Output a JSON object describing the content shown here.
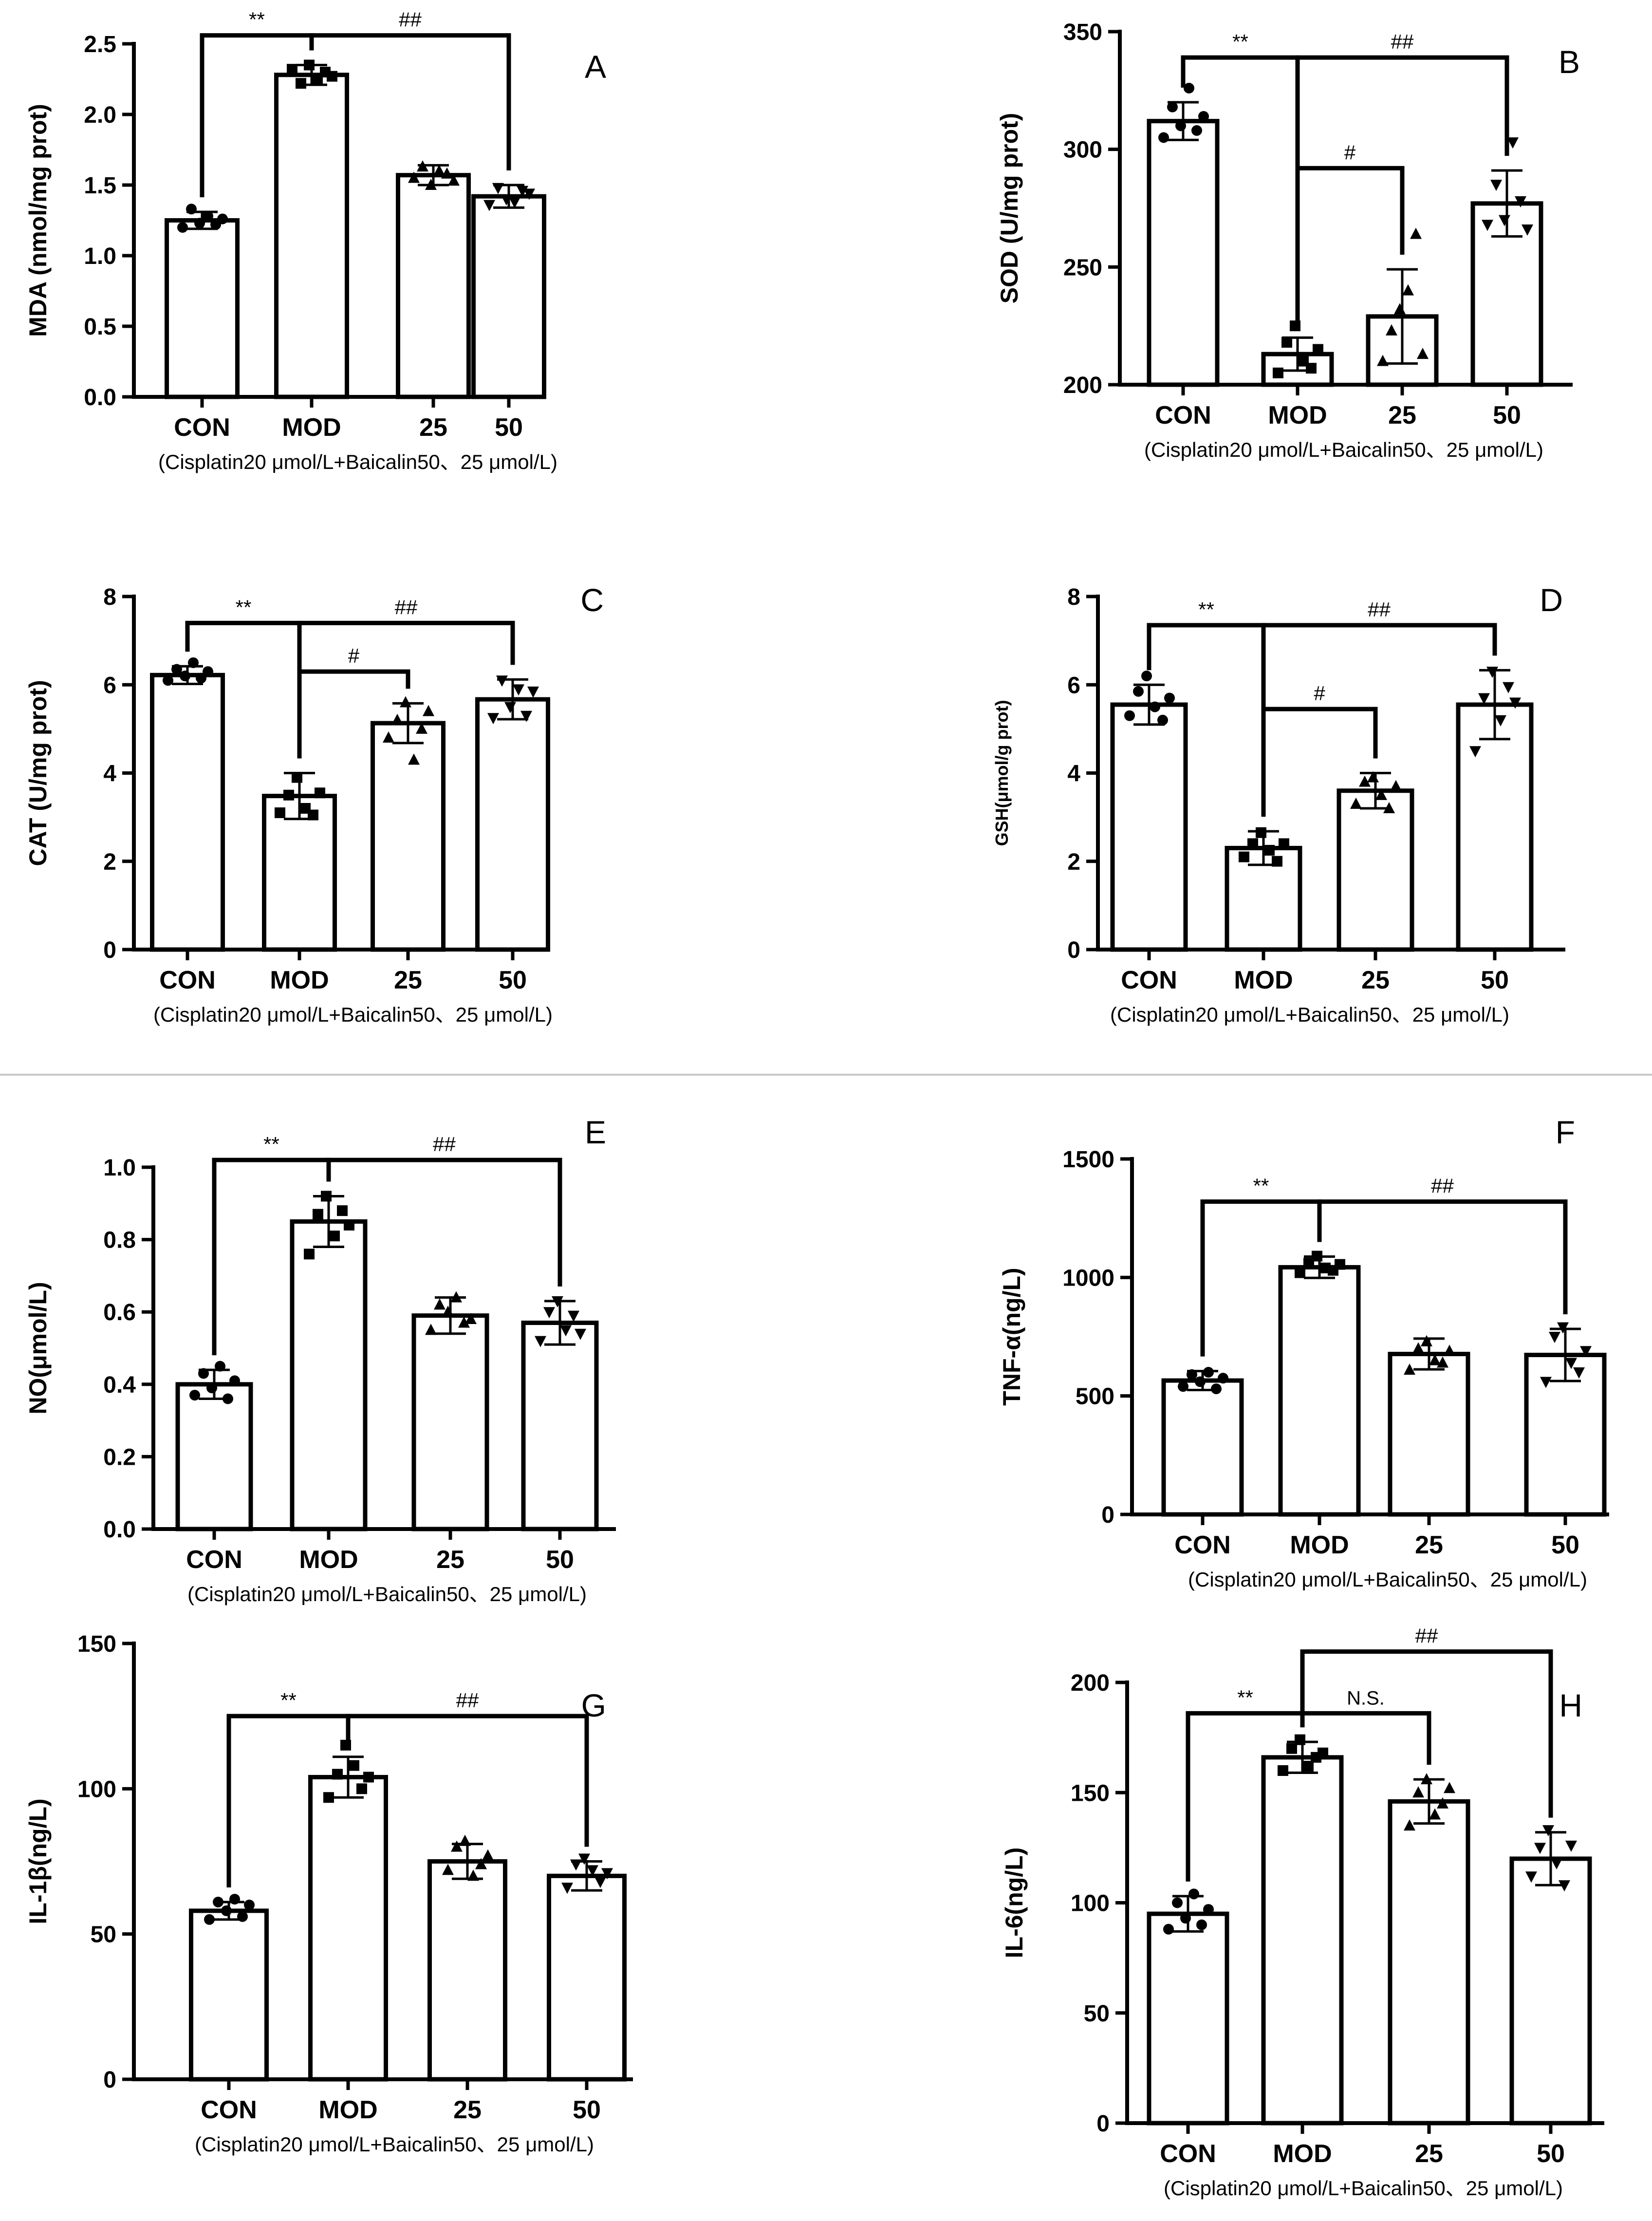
{
  "figure": {
    "categories": [
      "CON",
      "MOD",
      "25",
      "50"
    ],
    "xlabel": "(Cisplatin20 μmol/L+Baicalin50、25 μmol/L)",
    "marker_shapes": [
      "circle",
      "square",
      "triangle-up",
      "triangle-down"
    ]
  },
  "chart_data": [
    {
      "type": "bar",
      "panel": "A",
      "ylabel": "MDA (nmol/mg prot)",
      "categories": [
        "CON",
        "MOD",
        "25",
        "50"
      ],
      "values": [
        1.25,
        2.28,
        1.57,
        1.42
      ],
      "errors": [
        0.06,
        0.07,
        0.07,
        0.08
      ],
      "points": [
        [
          1.2,
          1.33,
          1.23,
          1.28,
          1.22,
          1.26
        ],
        [
          2.32,
          2.22,
          2.35,
          2.25,
          2.3,
          2.27
        ],
        [
          1.55,
          1.63,
          1.5,
          1.6,
          1.58,
          1.53
        ],
        [
          1.36,
          1.48,
          1.4,
          1.38,
          1.46,
          1.44
        ]
      ],
      "ylim": [
        0,
        2.5
      ],
      "yticks": [
        "0.0",
        "0.5",
        "1.0",
        "1.5",
        "2.0",
        "2.5"
      ],
      "annotations": [
        {
          "label": "**",
          "type": "pair",
          "from": 0,
          "to": 1,
          "level": 2.56
        },
        {
          "label": "##",
          "type": "pair",
          "from": 1,
          "to": 3,
          "level": 2.56
        }
      ]
    },
    {
      "type": "bar",
      "panel": "B",
      "ylabel": "SOD (U/mg prot)",
      "categories": [
        "CON",
        "MOD",
        "25",
        "50"
      ],
      "values": [
        312,
        213,
        229,
        277
      ],
      "errors": [
        8,
        7,
        20,
        14
      ],
      "points": [
        [
          305,
          318,
          310,
          326,
          308,
          314
        ],
        [
          205,
          218,
          225,
          210,
          207,
          215
        ],
        [
          210,
          223,
          232,
          240,
          264,
          213
        ],
        [
          268,
          285,
          270,
          303,
          278,
          266
        ]
      ],
      "ylim": [
        200,
        350
      ],
      "yticks": [
        "200",
        "250",
        "300",
        "350"
      ],
      "annotations": [
        {
          "label": "**",
          "type": "pair",
          "from": 0,
          "to": 1,
          "level": 339
        },
        {
          "label": "##",
          "type": "fan",
          "from": 1,
          "to": 3,
          "level": 339
        },
        {
          "label": "#",
          "type": "fan",
          "from": 1,
          "to": 2,
          "level": 292
        }
      ]
    },
    {
      "type": "bar",
      "panel": "C",
      "ylabel": "CAT (U/mg prot)",
      "categories": [
        "CON",
        "MOD",
        "25",
        "50"
      ],
      "values": [
        6.22,
        3.48,
        5.13,
        5.67
      ],
      "errors": [
        0.2,
        0.52,
        0.45,
        0.45
      ],
      "points": [
        [
          6.1,
          6.35,
          6.2,
          6.5,
          6.15,
          6.3
        ],
        [
          3.1,
          3.5,
          3.9,
          3.2,
          3.05,
          3.55
        ],
        [
          4.8,
          5.2,
          5.6,
          4.3,
          5.0,
          5.4
        ],
        [
          5.25,
          6.1,
          5.5,
          5.9,
          5.3,
          5.85
        ]
      ],
      "ylim": [
        0,
        8
      ],
      "yticks": [
        "0",
        "2",
        "4",
        "6",
        "8"
      ],
      "annotations": [
        {
          "label": "**",
          "type": "pair",
          "from": 0,
          "to": 1,
          "level": 7.4
        },
        {
          "label": "##",
          "type": "fan",
          "from": 1,
          "to": 3,
          "level": 7.4
        },
        {
          "label": "#",
          "type": "fan",
          "from": 1,
          "to": 2,
          "level": 6.3
        }
      ]
    },
    {
      "type": "bar",
      "panel": "D",
      "ylabel": "GSH(μmol/g prot)",
      "categories": [
        "CON",
        "MOD",
        "25",
        "50"
      ],
      "values": [
        5.55,
        2.3,
        3.6,
        5.55
      ],
      "errors": [
        0.45,
        0.38,
        0.4,
        0.78
      ],
      "points": [
        [
          5.3,
          5.85,
          6.2,
          5.5,
          5.2,
          5.7
        ],
        [
          2.1,
          2.4,
          2.65,
          2.25,
          2.0,
          2.4
        ],
        [
          3.3,
          3.8,
          3.9,
          3.5,
          3.2,
          3.7
        ],
        [
          4.5,
          5.7,
          6.3,
          5.2,
          5.95,
          5.6
        ]
      ],
      "ylim": [
        0,
        8
      ],
      "yticks": [
        "0",
        "2",
        "4",
        "6",
        "8"
      ],
      "annotations": [
        {
          "label": "**",
          "type": "pair",
          "from": 0,
          "to": 1,
          "level": 7.35
        },
        {
          "label": "##",
          "type": "fan",
          "from": 1,
          "to": 3,
          "level": 7.35
        },
        {
          "label": "#",
          "type": "fan",
          "from": 1,
          "to": 2,
          "level": 5.45
        }
      ]
    },
    {
      "type": "bar",
      "panel": "E",
      "ylabel": "NO(μmol/L)",
      "categories": [
        "CON",
        "MOD",
        "25",
        "50"
      ],
      "values": [
        0.4,
        0.85,
        0.59,
        0.57
      ],
      "errors": [
        0.04,
        0.07,
        0.05,
        0.06
      ],
      "points": [
        [
          0.37,
          0.43,
          0.39,
          0.45,
          0.36,
          0.41
        ],
        [
          0.76,
          0.87,
          0.92,
          0.81,
          0.88,
          0.84
        ],
        [
          0.55,
          0.62,
          0.6,
          0.64,
          0.57,
          0.58
        ],
        [
          0.52,
          0.6,
          0.63,
          0.55,
          0.59,
          0.54
        ]
      ],
      "ylim": [
        0,
        1.0
      ],
      "yticks": [
        "0.0",
        "0.2",
        "0.4",
        "0.6",
        "0.8",
        "1.0"
      ],
      "annotations": [
        {
          "label": "**",
          "type": "pair",
          "from": 0,
          "to": 1,
          "level": 1.02
        },
        {
          "label": "##",
          "type": "pair",
          "from": 1,
          "to": 3,
          "level": 1.02
        }
      ]
    },
    {
      "type": "bar",
      "panel": "F",
      "ylabel": "TNF-α(ng/L)",
      "categories": [
        "CON",
        "MOD",
        "25",
        "50"
      ],
      "values": [
        565,
        1043,
        677,
        673
      ],
      "errors": [
        40,
        45,
        65,
        110
      ],
      "points": [
        [
          540,
          590,
          560,
          600,
          530,
          575
        ],
        [
          1020,
          1060,
          1090,
          1040,
          1030,
          1055
        ],
        [
          610,
          700,
          730,
          650,
          640,
          690
        ],
        [
          560,
          750,
          790,
          640,
          600,
          690
        ]
      ],
      "ylim": [
        0,
        1500
      ],
      "yticks": [
        "0",
        "500",
        "1000",
        "1500"
      ],
      "annotations": [
        {
          "label": "**",
          "type": "pair",
          "from": 0,
          "to": 1,
          "level": 1320
        },
        {
          "label": "##",
          "type": "pair",
          "from": 1,
          "to": 3,
          "level": 1320
        }
      ]
    },
    {
      "type": "bar",
      "panel": "G",
      "ylabel": "IL-1β(ng/L)",
      "categories": [
        "CON",
        "MOD",
        "25",
        "50"
      ],
      "values": [
        58,
        104,
        75,
        70
      ],
      "errors": [
        3,
        7,
        6,
        5
      ],
      "points": [
        [
          55,
          61,
          58,
          62,
          56,
          60
        ],
        [
          97,
          105,
          115,
          108,
          100,
          104
        ],
        [
          72,
          80,
          82,
          70,
          74,
          77
        ],
        [
          66,
          74,
          76,
          72,
          68,
          71
        ]
      ],
      "ylim": [
        0,
        150
      ],
      "yticks": [
        "0",
        "50",
        "100",
        "150"
      ],
      "annotations": [
        {
          "label": "**",
          "type": "pair",
          "from": 0,
          "to": 1,
          "level": 125
        },
        {
          "label": "##",
          "type": "pair",
          "from": 1,
          "to": 3,
          "level": 125
        }
      ]
    },
    {
      "type": "bar",
      "panel": "H",
      "ylabel": "IL-6(ng/L)",
      "categories": [
        "CON",
        "MOD",
        "25",
        "50"
      ],
      "values": [
        95,
        166,
        146,
        120
      ],
      "errors": [
        8,
        7,
        10,
        12
      ],
      "points": [
        [
          88,
          100,
          93,
          104,
          90,
          97
        ],
        [
          160,
          170,
          174,
          162,
          166,
          168
        ],
        [
          135,
          150,
          156,
          140,
          145,
          152
        ],
        [
          112,
          125,
          133,
          118,
          108,
          126
        ]
      ],
      "ylim": [
        0,
        200
      ],
      "yticks": [
        "0",
        "50",
        "100",
        "150",
        "200"
      ],
      "annotations": [
        {
          "label": "**",
          "type": "pair",
          "from": 0,
          "to": 1,
          "level": 186
        },
        {
          "label": "N.S.",
          "type": "pair",
          "from": 1,
          "to": 2,
          "level": 186
        },
        {
          "label": "##",
          "type": "pair",
          "from": 1,
          "to": 3,
          "level": 214
        }
      ]
    }
  ]
}
